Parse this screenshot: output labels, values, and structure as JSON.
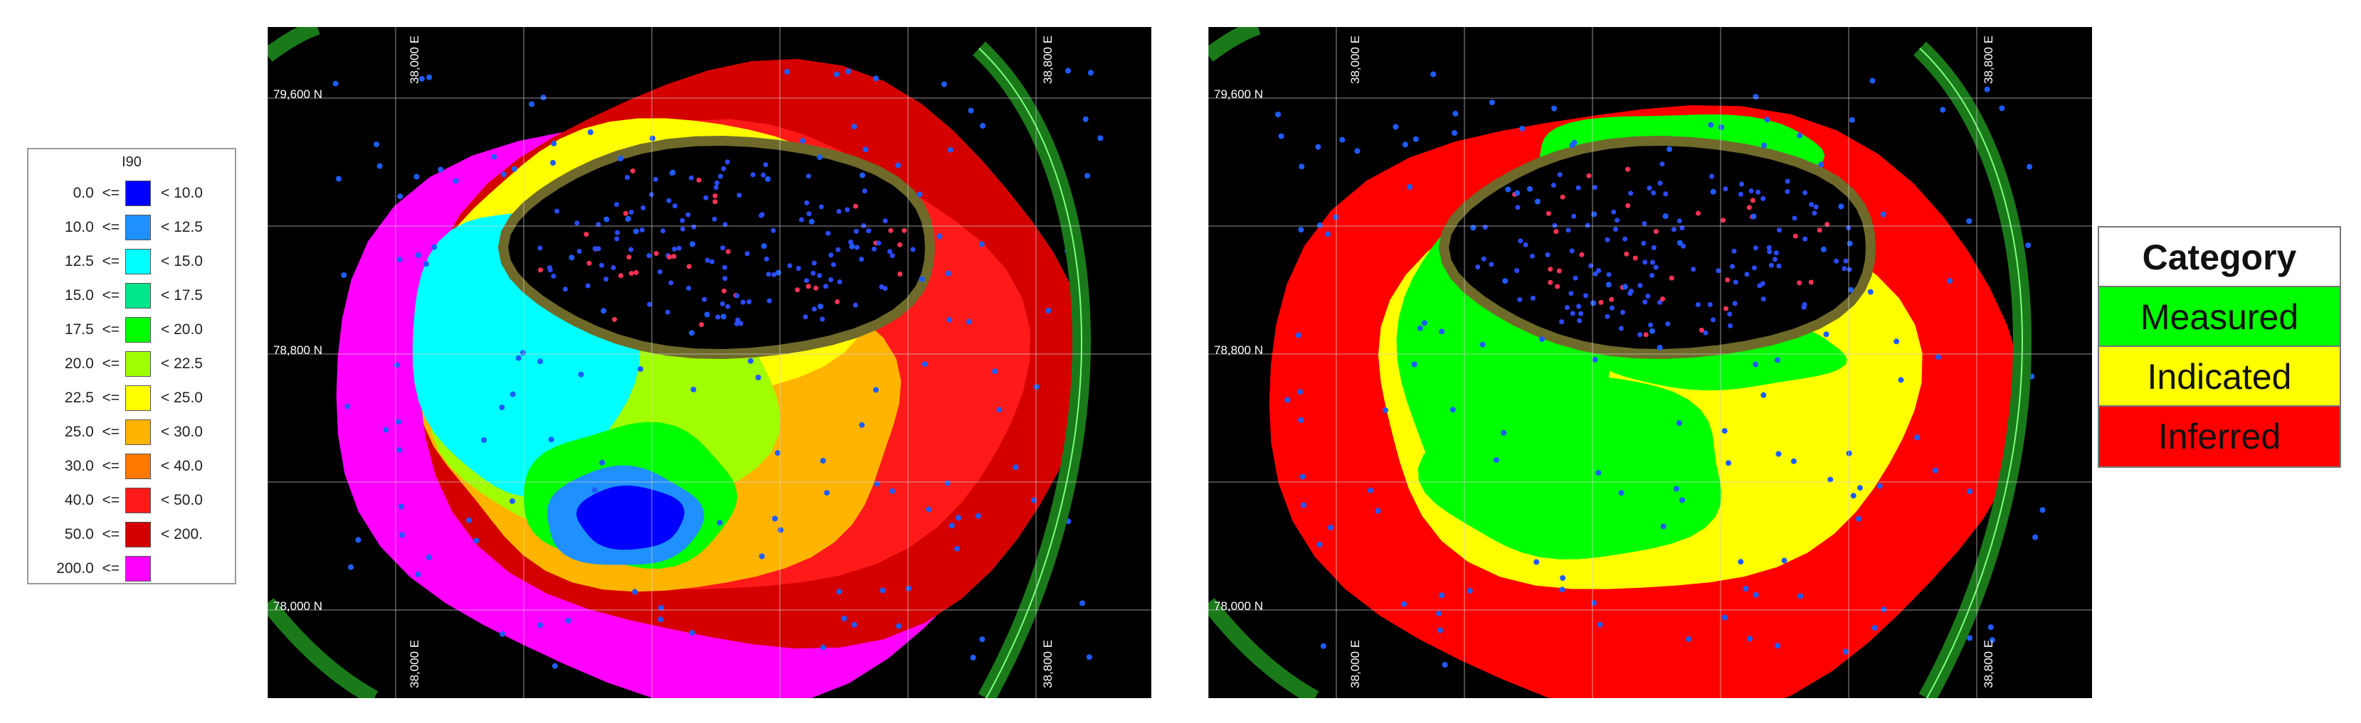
{
  "legend": {
    "title": "I90",
    "rows": [
      {
        "lo": "0.0  <=",
        "hi": "< 10.0",
        "color": "#0000ff"
      },
      {
        "lo": "10.0  <=",
        "hi": "< 12.5",
        "color": "#1e90ff"
      },
      {
        "lo": "12.5  <=",
        "hi": "< 15.0",
        "color": "#00ffff"
      },
      {
        "lo": "15.0  <=",
        "hi": "< 17.5",
        "color": "#00e68a"
      },
      {
        "lo": "17.5  <=",
        "hi": "< 20.0",
        "color": "#00ff00"
      },
      {
        "lo": "20.0  <=",
        "hi": "< 22.5",
        "color": "#a0ff00"
      },
      {
        "lo": "22.5  <=",
        "hi": "< 25.0",
        "color": "#ffff00"
      },
      {
        "lo": "25.0  <=",
        "hi": "< 30.0",
        "color": "#ffb400"
      },
      {
        "lo": "30.0  <=",
        "hi": "< 40.0",
        "color": "#ff7800"
      },
      {
        "lo": "40.0  <=",
        "hi": "< 50.0",
        "color": "#ff1a1a"
      },
      {
        "lo": "50.0  <=",
        "hi": "< 200.",
        "color": "#d40000"
      },
      {
        "lo": "200.0  <=",
        "hi": "",
        "color": "#ff00ff"
      }
    ]
  },
  "maps": {
    "grid_labels": {
      "n_top": "79,600 N",
      "n_mid": "78,800 N",
      "n_bot": "78,000 N",
      "e_left": "38,000 E",
      "e_right": "38,800 E"
    }
  },
  "category": {
    "title": "Category",
    "items": [
      {
        "label": "Measured",
        "color": "#00ff00"
      },
      {
        "label": "Indicated",
        "color": "#ffff00"
      },
      {
        "label": "Inferred",
        "color": "#ff0000"
      }
    ]
  }
}
